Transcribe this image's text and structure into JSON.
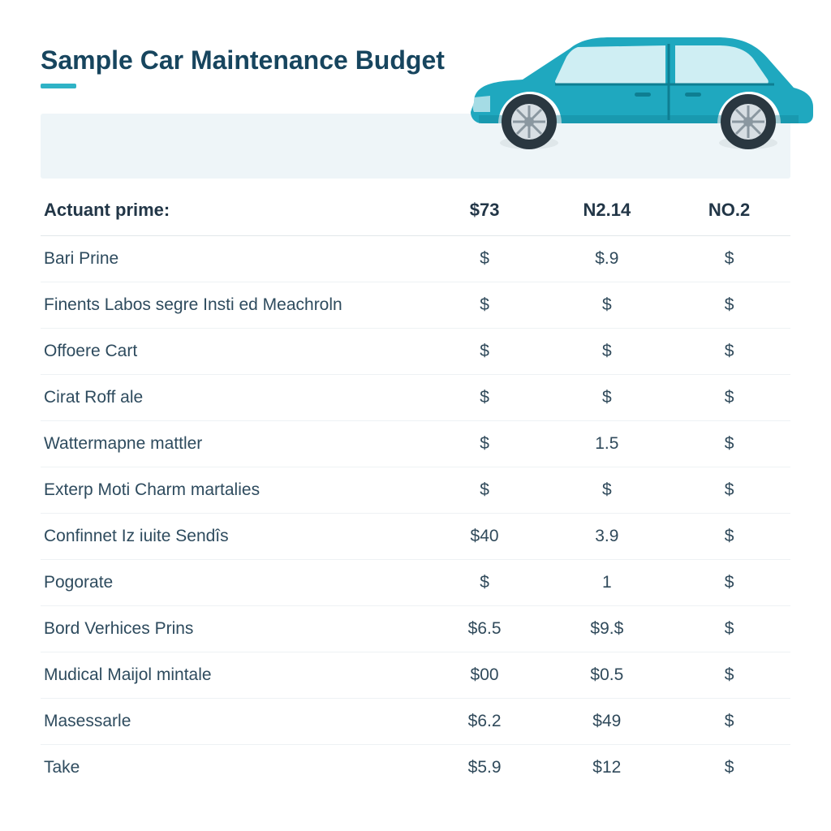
{
  "title": "Sample Car Maintenance Budget",
  "accent_color": "#2fb3c6",
  "banner_bg": "#eef5f8",
  "car_body_color": "#1fa8bf",
  "car_dark": "#0e7e92",
  "wheel_tire": "#2a3740",
  "wheel_rim": "#d7dee3",
  "table": {
    "type": "table",
    "background_color": "#ffffff",
    "grid_color": "#eef2f4",
    "header_color": "#223647",
    "cell_color": "#2e4b5e",
    "header_fontsize": 22,
    "cell_fontsize": 21,
    "columns": [
      "Actuant prime:",
      "$73",
      "N2.14",
      "NO.2"
    ],
    "col_widths_pct": [
      51,
      16.3,
      16.3,
      16.3
    ],
    "rows": [
      [
        "Bari Prine",
        "$",
        "$.9",
        "$"
      ],
      [
        "Finents Labos segre Insti ed Meachroln",
        "$",
        "$",
        "$"
      ],
      [
        "Offoere Cart",
        "$",
        "$",
        "$"
      ],
      [
        "Cirat Roff ale",
        "$",
        "$",
        "$"
      ],
      [
        "Wattermapne mattler",
        "$",
        "1.5",
        "$"
      ],
      [
        "Exterp Moti Charm martalies",
        "$",
        "$",
        "$"
      ],
      [
        "Confinnet Iz iuite Sendîs",
        "$40",
        "3.9",
        "$"
      ],
      [
        "Pogorate",
        "$",
        "1",
        "$"
      ],
      [
        "Bord Verhices Prins",
        "$6.5",
        "$9.$",
        "$"
      ],
      [
        "Mudical Maijol mintale",
        "$00",
        "$0.5",
        "$"
      ],
      [
        "Masessarle",
        "$6.2",
        "$49",
        "$"
      ],
      [
        "Take",
        "$5.9",
        "$12",
        "$"
      ]
    ]
  }
}
